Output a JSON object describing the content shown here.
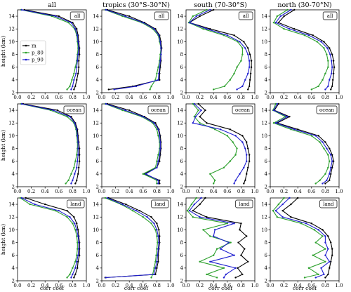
{
  "column_titles": [
    "all",
    "tropics (30°S-30°N)",
    "south (70-30°S)",
    "north (30-70°N)"
  ],
  "row_tags": [
    "all",
    "ocean",
    "land"
  ],
  "ylabel": "height (km)",
  "xlabel": "corr coef",
  "legend": [
    "m",
    "p_80",
    "p_90"
  ],
  "colors": {
    "m": "#000000",
    "p_80": "#2ca02c",
    "p_90": "#1f1fd0"
  },
  "chart_data": {
    "type": "line",
    "layout": "3 rows x 4 columns",
    "xlim": [
      0.0,
      1.0
    ],
    "ylim": [
      2,
      15
    ],
    "xticks": [
      "0.0",
      "0.2",
      "0.4",
      "0.6",
      "0.8",
      "1.0"
    ],
    "yticks": [
      "2",
      "4",
      "6",
      "8",
      "10",
      "12",
      "14"
    ],
    "heights": [
      2.5,
      3,
      4,
      5,
      6,
      7,
      8,
      9,
      10,
      11,
      12,
      13,
      14,
      15
    ],
    "panels": [
      {
        "row": "all",
        "column": "all",
        "series": [
          {
            "name": "m",
            "x": [
              0.82,
              0.84,
              0.86,
              0.88,
              0.89,
              0.89,
              0.9,
              0.9,
              0.89,
              0.88,
              0.86,
              0.8,
              0.6,
              0.1
            ]
          },
          {
            "name": "p_80",
            "x": [
              0.72,
              0.76,
              0.79,
              0.82,
              0.84,
              0.86,
              0.87,
              0.88,
              0.87,
              0.86,
              0.83,
              0.74,
              0.5,
              0.05
            ]
          },
          {
            "name": "p_90",
            "x": [
              0.78,
              0.8,
              0.82,
              0.85,
              0.86,
              0.87,
              0.88,
              0.89,
              0.88,
              0.87,
              0.84,
              0.78,
              0.55,
              0.06
            ]
          }
        ]
      },
      {
        "row": "all",
        "column": "tropics (30°S-30°N)",
        "series": [
          {
            "name": "m",
            "x": [
              0.1,
              0.45,
              0.84,
              0.84,
              0.85,
              0.86,
              0.86,
              0.87,
              0.86,
              0.84,
              0.78,
              0.62,
              0.4,
              0.08
            ]
          },
          {
            "name": "p_80",
            "x": [
              0.7,
              0.72,
              0.78,
              0.8,
              0.82,
              0.84,
              0.85,
              0.86,
              0.84,
              0.82,
              0.74,
              0.58,
              0.3,
              0.05
            ]
          },
          {
            "name": "p_90",
            "x": [
              0.18,
              0.5,
              0.82,
              0.83,
              0.84,
              0.85,
              0.86,
              0.86,
              0.85,
              0.83,
              0.76,
              0.6,
              0.34,
              0.06
            ]
          }
        ]
      },
      {
        "row": "all",
        "column": "south (70-30°S)",
        "series": [
          {
            "name": "m",
            "x": [
              0.9,
              0.92,
              0.93,
              0.94,
              0.95,
              0.95,
              0.93,
              0.9,
              0.84,
              0.7,
              0.35,
              0.05,
              0.2,
              0.4
            ]
          },
          {
            "name": "p_80",
            "x": [
              0.4,
              0.56,
              0.64,
              0.7,
              0.74,
              0.8,
              0.82,
              0.82,
              0.75,
              0.55,
              0.25,
              0.04,
              0.1,
              0.3
            ]
          },
          {
            "name": "p_90",
            "x": [
              0.74,
              0.82,
              0.86,
              0.9,
              0.92,
              0.92,
              0.9,
              0.86,
              0.78,
              0.6,
              0.3,
              0.05,
              0.15,
              0.35
            ]
          }
        ]
      },
      {
        "row": "all",
        "column": "north (30-70°N)",
        "series": [
          {
            "name": "m",
            "x": [
              0.88,
              0.9,
              0.91,
              0.92,
              0.93,
              0.92,
              0.9,
              0.86,
              0.78,
              0.62,
              0.35,
              0.12,
              0.2,
              0.35
            ]
          },
          {
            "name": "p_80",
            "x": [
              0.6,
              0.7,
              0.76,
              0.8,
              0.84,
              0.84,
              0.82,
              0.78,
              0.68,
              0.5,
              0.2,
              0.05,
              0.1,
              0.25
            ]
          },
          {
            "name": "p_90",
            "x": [
              0.8,
              0.84,
              0.86,
              0.89,
              0.9,
              0.89,
              0.87,
              0.83,
              0.74,
              0.56,
              0.28,
              0.08,
              0.15,
              0.3
            ]
          }
        ]
      },
      {
        "row": "ocean",
        "column": "all",
        "series": [
          {
            "name": "m",
            "x": [
              0.84,
              0.86,
              0.88,
              0.89,
              0.9,
              0.9,
              0.9,
              0.89,
              0.88,
              0.87,
              0.84,
              0.78,
              0.58,
              0.08
            ]
          },
          {
            "name": "p_80",
            "x": [
              0.7,
              0.74,
              0.78,
              0.82,
              0.84,
              0.86,
              0.87,
              0.87,
              0.86,
              0.85,
              0.82,
              0.72,
              0.48,
              0.05
            ]
          },
          {
            "name": "p_90",
            "x": [
              0.78,
              0.8,
              0.83,
              0.86,
              0.87,
              0.88,
              0.88,
              0.88,
              0.87,
              0.86,
              0.83,
              0.76,
              0.52,
              0.06
            ]
          }
        ]
      },
      {
        "row": "ocean",
        "column": "tropics (30°S-30°N)",
        "series": [
          {
            "name": "m",
            "x": [
              0.84,
              0.84,
              0.62,
              0.8,
              0.84,
              0.85,
              0.86,
              0.86,
              0.85,
              0.83,
              0.78,
              0.62,
              0.4,
              0.08
            ]
          },
          {
            "name": "p_80",
            "x": [
              0.8,
              0.8,
              0.6,
              0.78,
              0.8,
              0.82,
              0.84,
              0.84,
              0.82,
              0.8,
              0.74,
              0.58,
              0.3,
              0.05
            ]
          },
          {
            "name": "p_90",
            "x": [
              0.82,
              0.82,
              0.64,
              0.8,
              0.82,
              0.84,
              0.85,
              0.85,
              0.84,
              0.82,
              0.76,
              0.6,
              0.34,
              0.06
            ]
          }
        ]
      },
      {
        "row": "ocean",
        "column": "south (70-30°S)",
        "series": [
          {
            "name": "m",
            "x": [
              0.84,
              0.86,
              0.88,
              0.9,
              0.92,
              0.92,
              0.9,
              0.88,
              0.82,
              0.64,
              0.3,
              0.2,
              0.28,
              0.18
            ]
          },
          {
            "name": "p_80",
            "x": [
              0.4,
              0.42,
              0.35,
              0.55,
              0.64,
              0.72,
              0.74,
              0.68,
              0.6,
              0.42,
              0.2,
              0.12,
              0.18,
              0.1
            ]
          },
          {
            "name": "p_90",
            "x": [
              0.7,
              0.72,
              0.78,
              0.84,
              0.88,
              0.88,
              0.86,
              0.82,
              0.72,
              0.5,
              0.1,
              0.14,
              0.22,
              0.12
            ]
          }
        ]
      },
      {
        "row": "ocean",
        "column": "north (30-70°N)",
        "series": [
          {
            "name": "m",
            "x": [
              0.8,
              0.86,
              0.88,
              0.9,
              0.92,
              0.9,
              0.86,
              0.8,
              0.7,
              0.4,
              0.1,
              0.28,
              0.06,
              0.12
            ]
          },
          {
            "name": "p_80",
            "x": [
              0.66,
              0.72,
              0.8,
              0.84,
              0.86,
              0.84,
              0.78,
              0.72,
              0.6,
              0.3,
              0.05,
              0.22,
              0.04,
              0.08
            ]
          },
          {
            "name": "p_90",
            "x": [
              0.76,
              0.82,
              0.86,
              0.88,
              0.9,
              0.88,
              0.82,
              0.76,
              0.66,
              0.35,
              0.08,
              0.25,
              0.05,
              0.1
            ]
          }
        ]
      },
      {
        "row": "land",
        "column": "all",
        "series": [
          {
            "name": "m",
            "x": [
              0.82,
              0.84,
              0.87,
              0.88,
              0.9,
              0.9,
              0.9,
              0.89,
              0.88,
              0.86,
              0.82,
              0.72,
              0.4,
              0.12
            ]
          },
          {
            "name": "p_80",
            "x": [
              0.72,
              0.76,
              0.8,
              0.84,
              0.86,
              0.87,
              0.87,
              0.86,
              0.84,
              0.8,
              0.72,
              0.55,
              0.18,
              0.04
            ]
          },
          {
            "name": "p_90",
            "x": [
              0.78,
              0.8,
              0.84,
              0.86,
              0.88,
              0.89,
              0.89,
              0.88,
              0.86,
              0.83,
              0.76,
              0.6,
              0.25,
              0.06
            ]
          }
        ]
      },
      {
        "row": "land",
        "column": "tropics (30°S-30°N)",
        "series": [
          {
            "name": "m",
            "x": [
              0.05,
              0.78,
              0.8,
              0.82,
              0.82,
              0.83,
              0.84,
              0.84,
              0.83,
              0.8,
              0.72,
              0.55,
              0.35,
              0.1
            ]
          },
          {
            "name": "p_80",
            "x": [
              0.72,
              0.74,
              0.76,
              0.78,
              0.79,
              0.8,
              0.81,
              0.8,
              0.78,
              0.72,
              0.6,
              0.45,
              0.28,
              0.05
            ]
          },
          {
            "name": "p_90",
            "x": [
              0.06,
              0.76,
              0.78,
              0.8,
              0.81,
              0.82,
              0.83,
              0.82,
              0.8,
              0.76,
              0.66,
              0.5,
              0.3,
              0.08
            ]
          }
        ]
      },
      {
        "row": "land",
        "column": "south (70-30°S)",
        "series": [
          {
            "name": "m",
            "x": [
              0.72,
              0.82,
              0.75,
              0.9,
              0.8,
              0.85,
              0.76,
              0.88,
              0.78,
              0.8,
              0.3,
              0.1,
              0.2,
              0.28
            ]
          },
          {
            "name": "p_80",
            "x": [
              0.45,
              0.3,
              0.55,
              0.2,
              0.4,
              0.45,
              0.65,
              0.35,
              0.25,
              0.6,
              0.1,
              0.02,
              0.08,
              0.15
            ]
          },
          {
            "name": "p_90",
            "x": [
              0.55,
              0.58,
              0.72,
              0.35,
              0.7,
              0.5,
              0.62,
              0.4,
              0.42,
              0.7,
              0.2,
              0.05,
              0.12,
              0.22
            ]
          }
        ]
      },
      {
        "row": "land",
        "column": "north (30-70°N)",
        "series": [
          {
            "name": "m",
            "x": [
              0.8,
              0.84,
              0.86,
              0.88,
              0.9,
              0.9,
              0.88,
              0.84,
              0.76,
              0.6,
              0.3,
              0.18,
              0.3,
              0.4
            ]
          },
          {
            "name": "p_80",
            "x": [
              0.5,
              0.7,
              0.56,
              0.8,
              0.62,
              0.8,
              0.66,
              0.76,
              0.64,
              0.45,
              0.1,
              0.04,
              0.12,
              0.2
            ]
          },
          {
            "name": "p_90",
            "x": [
              0.66,
              0.78,
              0.74,
              0.86,
              0.8,
              0.84,
              0.8,
              0.8,
              0.7,
              0.52,
              0.18,
              0.08,
              0.18,
              0.28
            ]
          }
        ]
      }
    ]
  }
}
